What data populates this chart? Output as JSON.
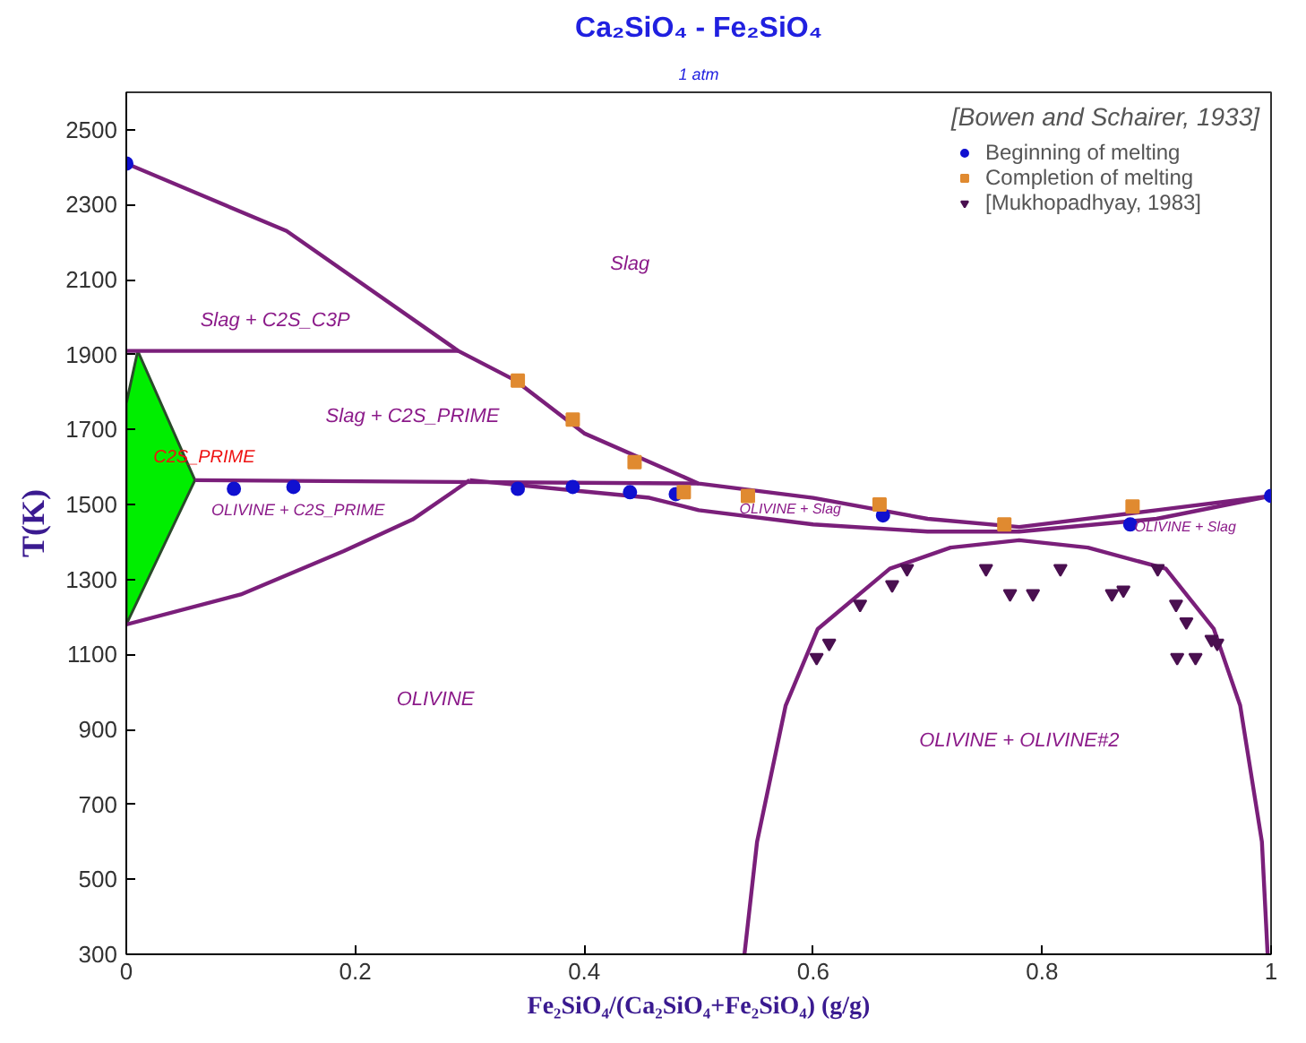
{
  "chart_data": {
    "type": "line",
    "title": "Ca₂SiO₄ - Fe₂SiO₄",
    "subtitle": "1 atm",
    "xlabel": "Fe₂SiO₄/(Ca₂SiO₄+Fe₂SiO₄) (g/g)",
    "ylabel": "T(K)",
    "legend_title": "[Bowen and Schairer, 1933]",
    "xlim": [
      0,
      1
    ],
    "ylim": [
      300,
      2600
    ],
    "xticks": [
      0,
      0.2,
      0.4,
      0.6,
      0.8,
      1
    ],
    "yticks": [
      300,
      500,
      700,
      900,
      1100,
      1300,
      1500,
      1700,
      1900,
      2100,
      2300,
      2500
    ],
    "grid": false,
    "legend": "top right",
    "series": [
      {
        "type": "area",
        "color": "#00ee00",
        "x": [
          0,
          0,
          0.01,
          0.06,
          0
        ],
        "values": [
          1180,
          1770,
          1910,
          1565,
          1180
        ]
      },
      {
        "color": "#7a1f7a",
        "x": [
          0,
          0.14,
          0.29,
          0.34,
          0.4,
          0.5,
          0.6,
          0.7,
          0.78,
          0.9,
          1
        ],
        "values": [
          2410,
          2230,
          1910,
          1831,
          1690,
          1556,
          1518,
          1462,
          1440,
          1485,
          1523
        ]
      },
      {
        "color": "#7a1f7a",
        "x": [
          0.3,
          0.4,
          0.457,
          0.5,
          0.6,
          0.7,
          0.78,
          0.9,
          1
        ],
        "values": [
          1565,
          1535,
          1518,
          1485,
          1447,
          1428,
          1428,
          1462,
          1523
        ]
      },
      {
        "color": "#7a1f7a",
        "x": [
          0,
          0.29
        ],
        "values": [
          1910,
          1910
        ]
      },
      {
        "color": "#7a1f7a",
        "x": [
          0.06,
          0.5
        ],
        "values": [
          1565,
          1556
        ]
      },
      {
        "color": "#7a1f7a",
        "x": [
          0,
          0.1,
          0.19,
          0.25,
          0.3
        ],
        "values": [
          1180,
          1260,
          1376,
          1460,
          1565
        ]
      },
      {
        "color": "#7a1f7a",
        "x": [
          0.54,
          0.551,
          0.576,
          0.604,
          0.667,
          0.72,
          0.78,
          0.84,
          0.908,
          0.95,
          0.973,
          0.992,
          0.997
        ],
        "values": [
          300,
          600,
          964,
          1168,
          1329,
          1385,
          1405,
          1385,
          1329,
          1168,
          964,
          600,
          300
        ]
      },
      {
        "type": "scatter",
        "name": "Beginning of melting",
        "marker": "circle",
        "color": "#1010d0",
        "x": [
          0,
          0.094,
          0.146,
          0.342,
          0.39,
          0.44,
          0.48,
          0.661,
          0.877,
          1
        ],
        "values": [
          2410,
          1542,
          1547,
          1542,
          1547,
          1533,
          1528,
          1471,
          1447,
          1523
        ]
      },
      {
        "type": "scatter",
        "name": "Completion of melting",
        "marker": "square",
        "color": "#e08a30",
        "x": [
          0.342,
          0.39,
          0.444,
          0.487,
          0.543,
          0.658,
          0.767,
          0.879
        ],
        "values": [
          1831,
          1727,
          1613,
          1533,
          1523,
          1500,
          1447,
          1495
        ]
      },
      {
        "type": "scatter",
        "name": "[Mukhopadhyay, 1983]",
        "marker": "triangle",
        "color": "#4a1050",
        "x": [
          0.603,
          0.614,
          0.641,
          0.669,
          0.682,
          0.751,
          0.772,
          0.792,
          0.816,
          0.861,
          0.871,
          0.901,
          0.917,
          0.926,
          0.918,
          0.934,
          0.948,
          0.953
        ],
        "values": [
          1092,
          1130,
          1234,
          1286,
          1329,
          1329,
          1262,
          1262,
          1329,
          1262,
          1272,
          1329,
          1234,
          1187,
          1092,
          1092,
          1140,
          1130
        ]
      }
    ],
    "annotations": [
      "Slag",
      "Slag + C2S_C3P",
      "Slag + C2S_PRIME",
      "C2S_PRIME",
      "OLIVINE + C2S_PRIME",
      "OLIVINE + Slag",
      "OLIVINE + Slag",
      "OLIVINE",
      "OLIVINE + OLIVINE#2"
    ]
  }
}
